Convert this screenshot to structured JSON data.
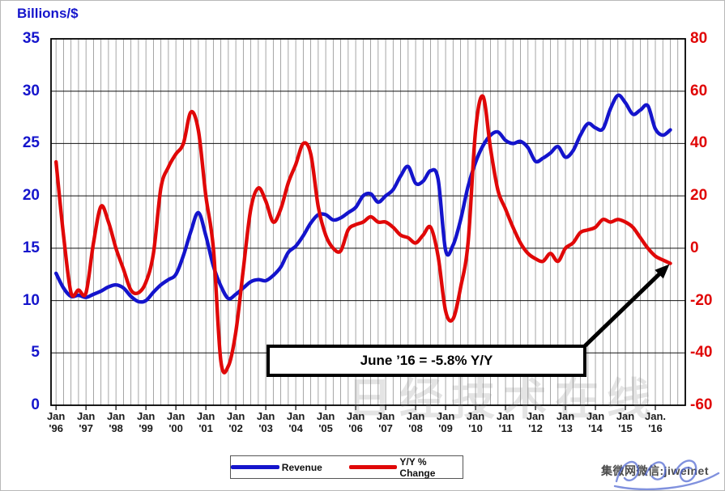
{
  "axes": {
    "left": {
      "title": "Billions/$",
      "labels": [
        35,
        30,
        25,
        20,
        15,
        10,
        5,
        0
      ],
      "range": [
        0,
        35
      ],
      "color": "#1515cc"
    },
    "right": {
      "labels": [
        80,
        60,
        40,
        20,
        0,
        -20,
        -40,
        -60
      ],
      "range": [
        -60,
        80
      ],
      "color": "#e00505"
    },
    "x": {
      "ticks": [
        {
          "line1": "Jan",
          "line2": "'96"
        },
        {
          "line1": "Jan",
          "line2": "'97"
        },
        {
          "line1": "Jan",
          "line2": "'98"
        },
        {
          "line1": "Jan",
          "line2": "'99"
        },
        {
          "line1": "Jan",
          "line2": "'00"
        },
        {
          "line1": "Jan",
          "line2": "'01"
        },
        {
          "line1": "Jan",
          "line2": "'02"
        },
        {
          "line1": "Jan",
          "line2": "'03"
        },
        {
          "line1": "Jan",
          "line2": "'04"
        },
        {
          "line1": "Jan",
          "line2": "'05"
        },
        {
          "line1": "Jan",
          "line2": "'06"
        },
        {
          "line1": "Jan",
          "line2": "'07"
        },
        {
          "line1": "Jan",
          "line2": "'08"
        },
        {
          "line1": "Jan",
          "line2": "'09"
        },
        {
          "line1": "Jan",
          "line2": "'10"
        },
        {
          "line1": "Jan",
          "line2": "'11"
        },
        {
          "line1": "Jan",
          "line2": "'12"
        },
        {
          "line1": "Jan",
          "line2": "'13"
        },
        {
          "line1": "Jan",
          "line2": "'14"
        },
        {
          "line1": "Jan",
          "line2": "'15"
        },
        {
          "line1": "Jan.",
          "line2": "'16"
        }
      ]
    }
  },
  "chart_data": {
    "type": "line",
    "title": "",
    "x_interval": "quarterly",
    "x_start": "Jan 1996",
    "x_end": "Jun 2016",
    "ylabel_left": "Billions/$",
    "ylabel_right": "Y/Y % Change",
    "ylim_left": [
      0,
      35
    ],
    "ylim_right": [
      -60,
      80
    ],
    "grid": "vertical quarterly lines, horizontal lines every 5 (left) / 20 (right) units",
    "legend_position": "bottom",
    "series": [
      {
        "name": "Revenue",
        "axis": "left",
        "color": "#1414cc",
        "values": [
          12.6,
          11.2,
          10.4,
          10.5,
          10.3,
          10.6,
          10.9,
          11.3,
          11.5,
          11.2,
          10.4,
          9.9,
          10.0,
          10.8,
          11.5,
          12.0,
          12.5,
          14.3,
          16.6,
          18.4,
          16.2,
          13.3,
          11.4,
          10.2,
          10.6,
          11.2,
          11.8,
          12.0,
          11.9,
          12.4,
          13.2,
          14.6,
          15.2,
          16.2,
          17.4,
          18.2,
          18.2,
          17.7,
          17.9,
          18.4,
          18.9,
          20.0,
          20.2,
          19.4,
          20.0,
          20.6,
          21.9,
          22.8,
          21.2,
          21.4,
          22.4,
          21.6,
          14.8,
          15.3,
          17.7,
          20.9,
          23.2,
          24.8,
          25.8,
          26.1,
          25.3,
          25.0,
          25.2,
          24.6,
          23.3,
          23.6,
          24.1,
          24.7,
          23.7,
          24.3,
          25.8,
          26.9,
          26.5,
          26.4,
          28.3,
          29.6,
          28.9,
          27.8,
          28.2,
          28.6,
          26.4,
          25.8,
          26.3
        ]
      },
      {
        "name": "Y/Y % Change",
        "axis": "right",
        "color": "#e00808",
        "values": [
          33,
          5,
          -17,
          -16,
          -17,
          2,
          16,
          10,
          0,
          -8,
          -16,
          -17,
          -13,
          -2,
          23,
          31,
          36,
          40,
          52,
          45,
          20,
          0,
          -43,
          -45,
          -32,
          -8,
          15,
          23,
          18,
          10,
          15,
          25,
          32,
          40,
          36,
          16,
          5,
          0,
          -1,
          7,
          9,
          10,
          12,
          10,
          10,
          8,
          5,
          4,
          2,
          5,
          8,
          -3,
          -24,
          -27,
          -15,
          2,
          45,
          58,
          38,
          22,
          15,
          8,
          2,
          -2,
          -4,
          -5,
          -2,
          -5,
          0,
          2,
          6,
          7,
          8,
          11,
          10,
          11,
          10,
          8,
          4,
          0,
          -3,
          -4.5,
          -5.8
        ]
      }
    ]
  },
  "annotation": {
    "text": "June ’16 = -5.8% Y/Y",
    "points_to": {
      "series": "Y/Y % Change",
      "value": -5.8
    }
  },
  "legend": {
    "items": [
      {
        "label": "Revenue",
        "color": "#1414cc"
      },
      {
        "label": "Y/Y % Change",
        "color": "#e00808"
      }
    ]
  },
  "watermarks": {
    "center_text": "日经技术在线",
    "bottom_right_text": "集微网微信:jiweinet"
  }
}
